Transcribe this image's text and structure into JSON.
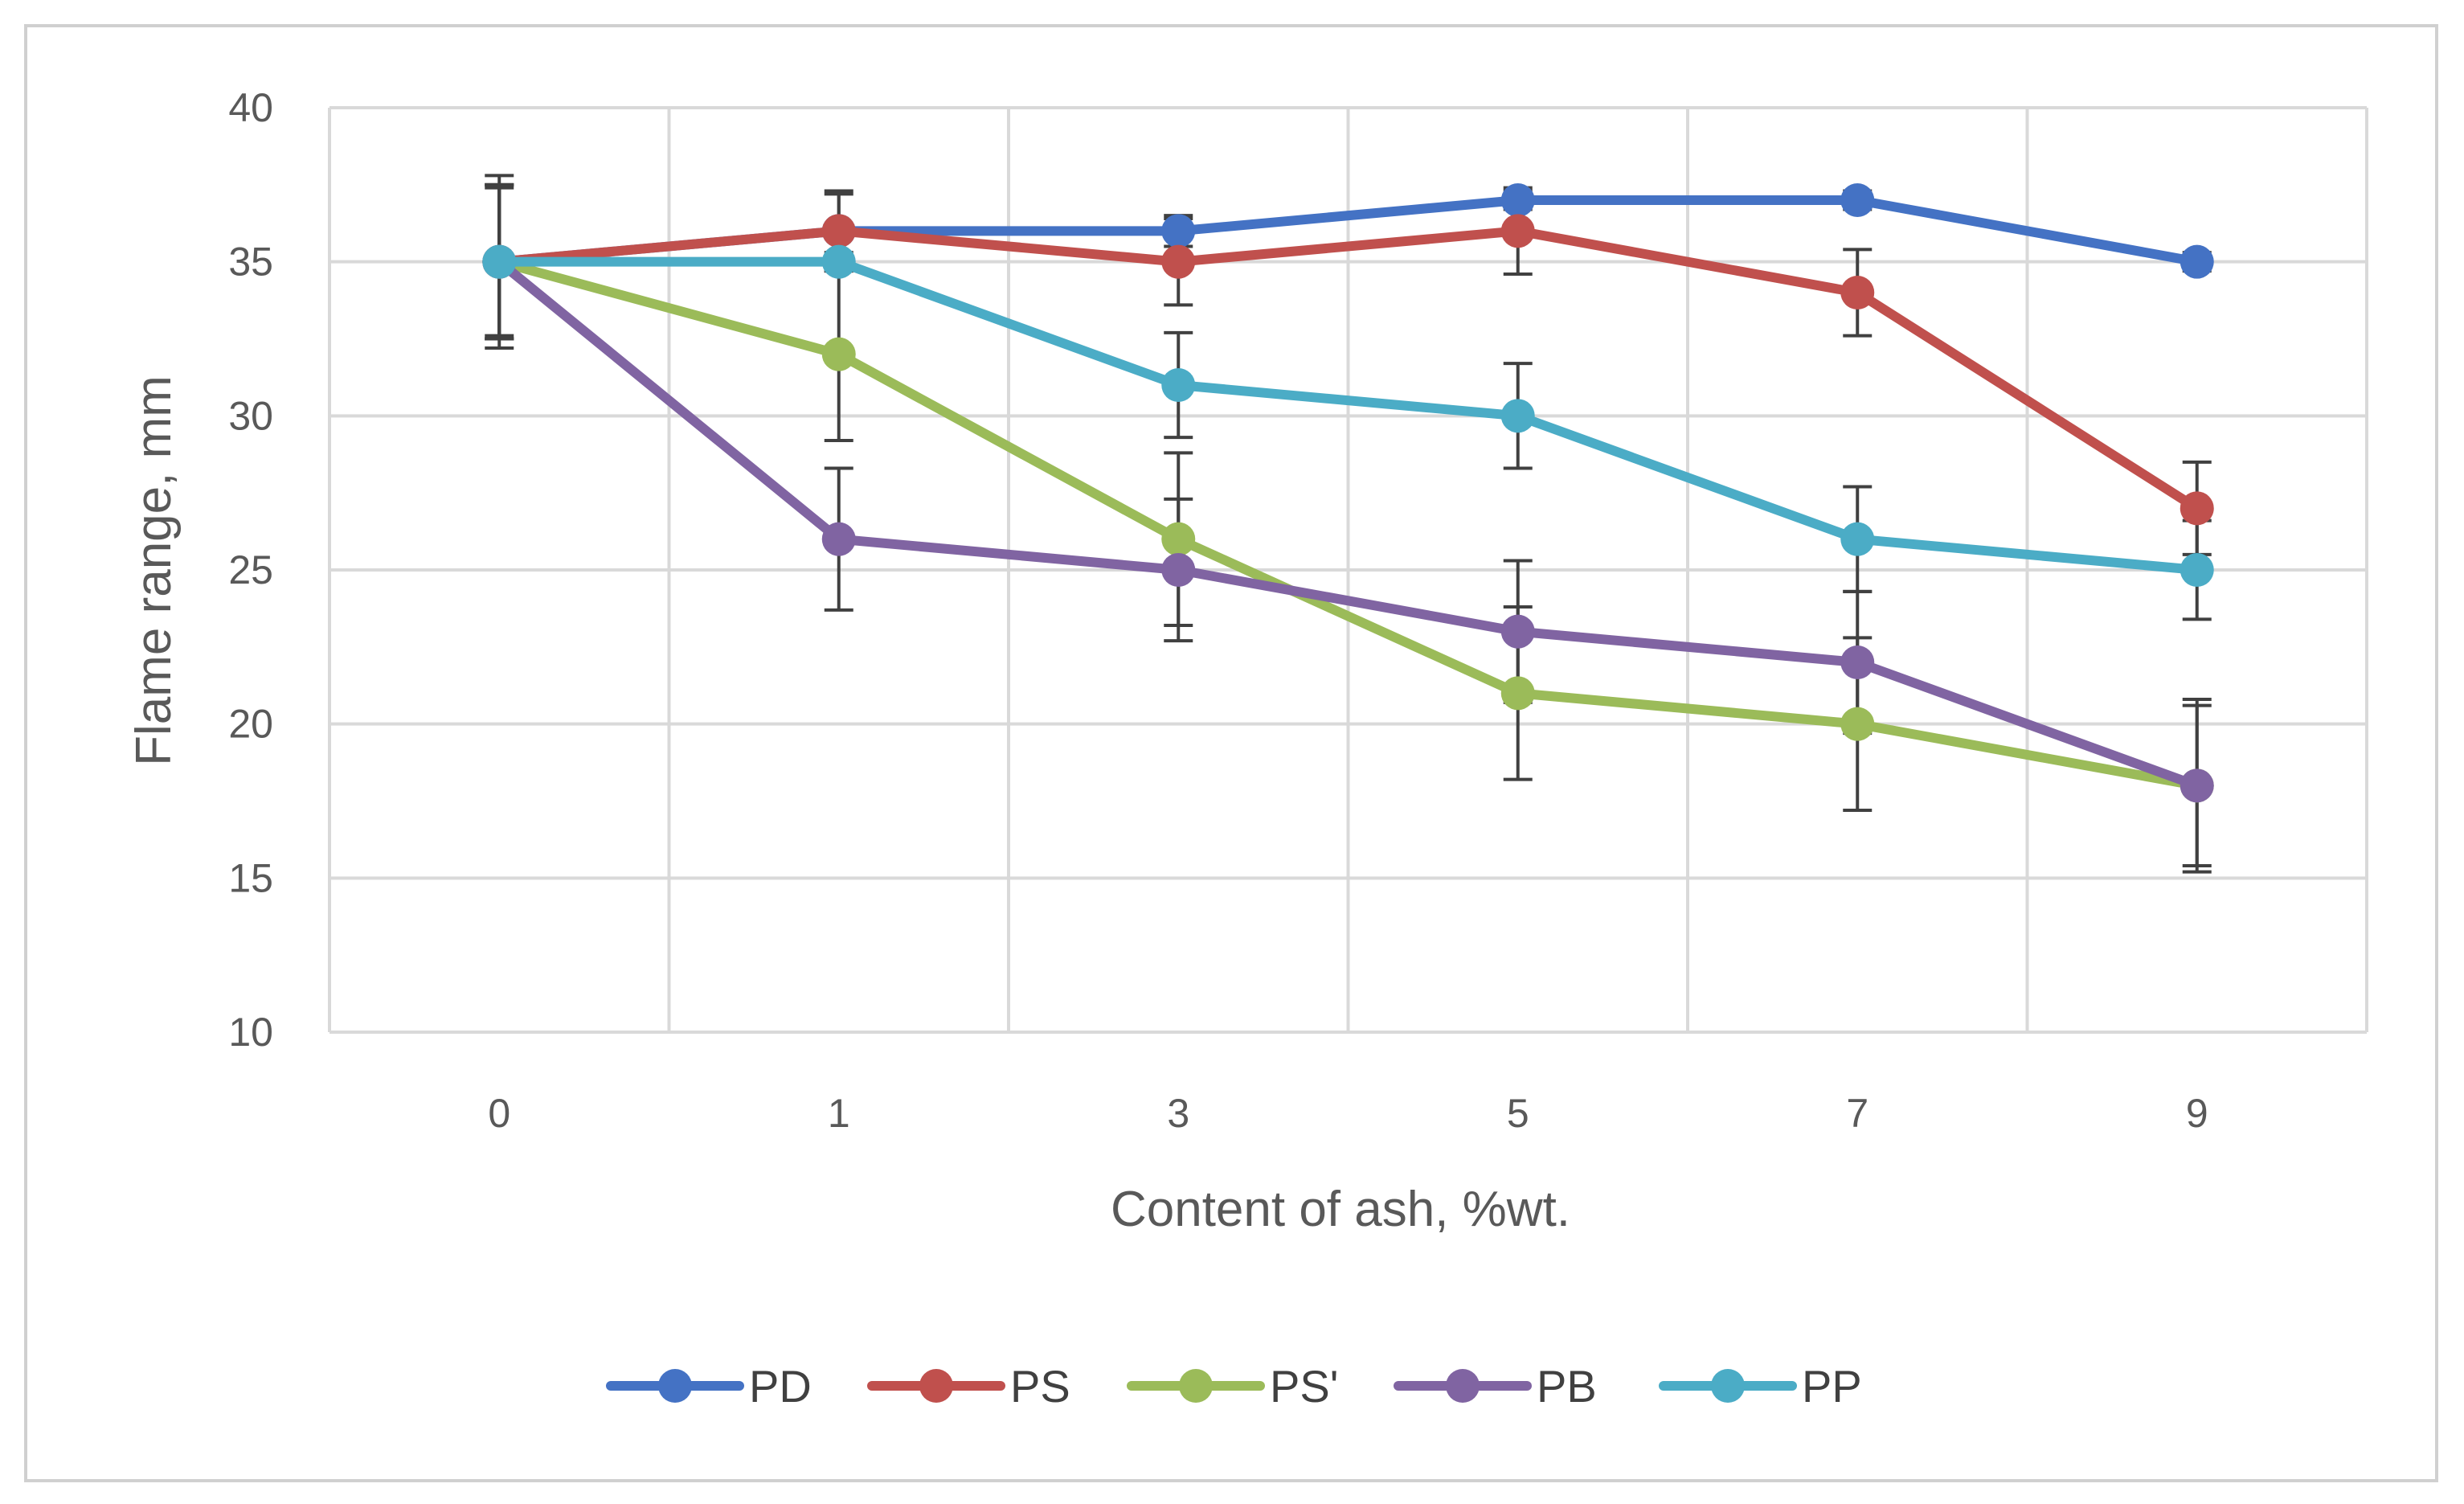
{
  "chart_data": {
    "type": "line",
    "title": "",
    "xlabel": "Content of ash, %wt.",
    "ylabel": "Flame range, mm",
    "categories": [
      "0",
      "1",
      "3",
      "5",
      "7",
      "9"
    ],
    "ylim": [
      10,
      40
    ],
    "yticks": [
      10,
      15,
      20,
      25,
      30,
      35,
      40
    ],
    "grid": true,
    "legend_position": "bottom",
    "series": [
      {
        "name": "PD",
        "color": "#4472C4",
        "values": [
          35,
          36,
          36,
          37,
          37,
          35
        ],
        "errors": [
          2.5,
          1.2,
          0.5,
          0.3,
          0.3,
          0.3
        ]
      },
      {
        "name": "PS",
        "color": "#C0504D",
        "values": [
          35,
          36,
          35,
          36,
          34,
          27
        ],
        "errors": [
          2.5,
          1.3,
          1.4,
          1.4,
          1.4,
          1.5
        ]
      },
      {
        "name": "PS'",
        "color": "#9BBB59",
        "values": [
          35,
          32,
          26,
          21,
          20,
          18
        ],
        "errors": [
          2.5,
          2.8,
          2.8,
          2.8,
          2.8,
          2.6
        ]
      },
      {
        "name": "PB",
        "color": "#8064A2",
        "values": [
          35,
          26,
          25,
          23,
          22,
          18
        ],
        "errors": [
          2.8,
          2.3,
          2.3,
          2.3,
          2.3,
          2.8
        ]
      },
      {
        "name": "PP",
        "color": "#4BACC6",
        "values": [
          35,
          35,
          31,
          30,
          26,
          25
        ],
        "errors": [
          2.4,
          0.3,
          1.7,
          1.7,
          1.7,
          1.6
        ]
      }
    ]
  }
}
